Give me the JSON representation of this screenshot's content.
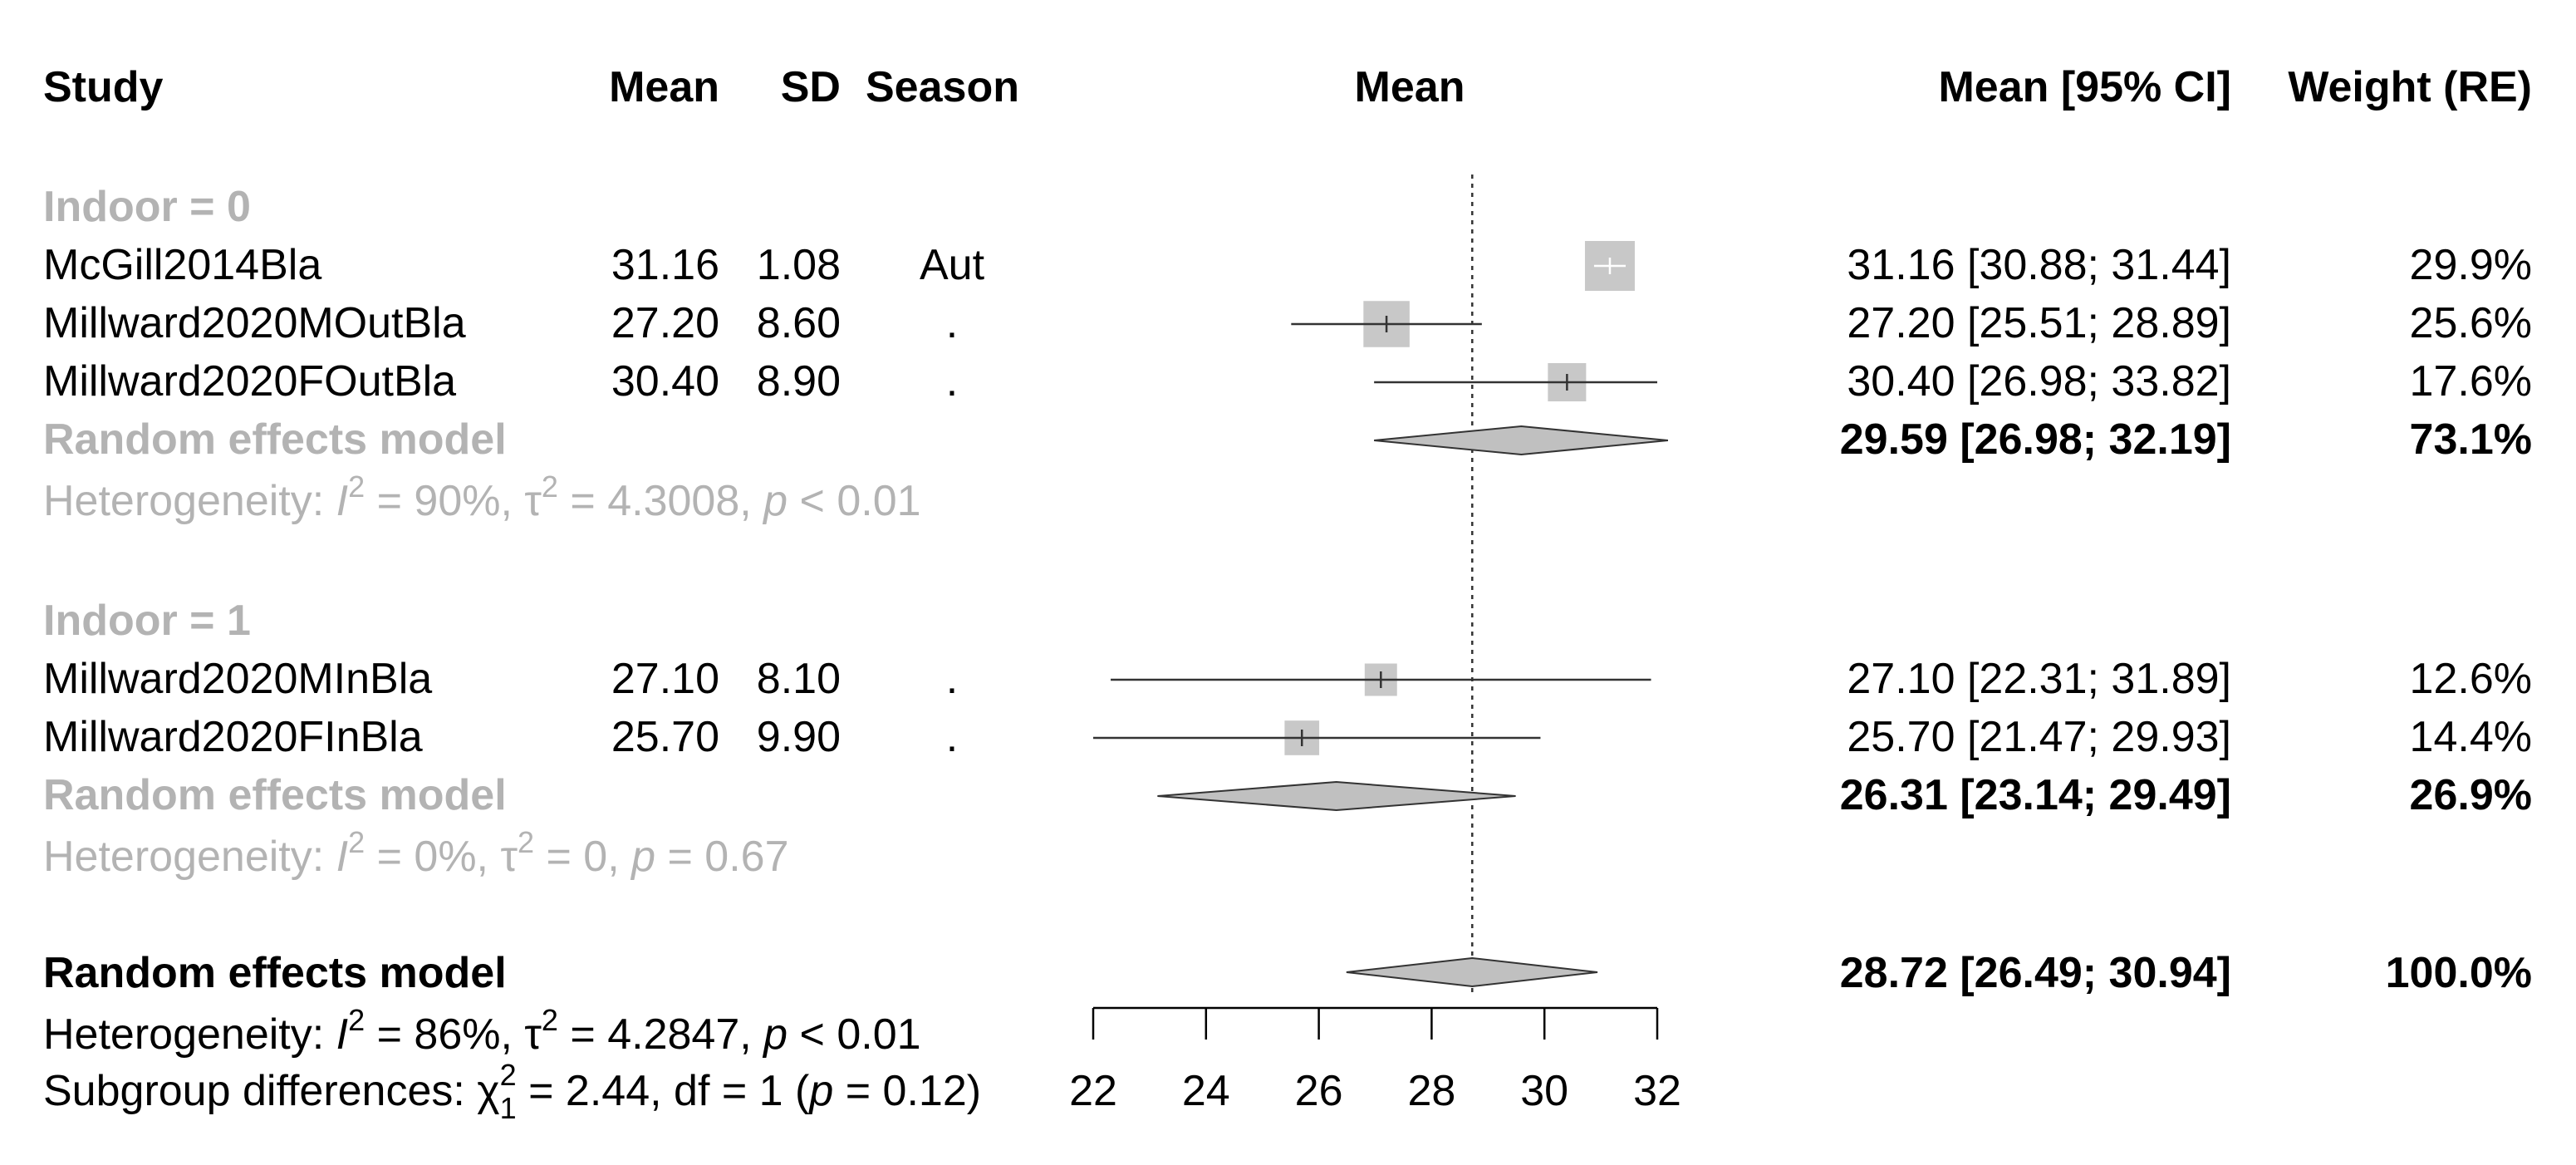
{
  "headers": {
    "study": "Study",
    "mean": "Mean",
    "sd": "SD",
    "season": "Season",
    "plot_mean": "Mean",
    "ci": "Mean [95% CI]",
    "weight": "Weight (RE)"
  },
  "subgroups": [
    {
      "label": "Indoor = 0",
      "studies": [
        {
          "name": "McGill2014Bla",
          "mean": "31.16",
          "sd": "1.08",
          "season": "Aut",
          "ci_text": "31.16 [30.88; 31.44]",
          "weight": "29.9%",
          "est": 31.16,
          "lo": 30.88,
          "hi": 31.44,
          "w": 29.9
        },
        {
          "name": "Millward2020MOutBla",
          "mean": "27.20",
          "sd": "8.60",
          "season": ".",
          "ci_text": "27.20 [25.51; 28.89]",
          "weight": "25.6%",
          "est": 27.2,
          "lo": 25.51,
          "hi": 28.89,
          "w": 25.6
        },
        {
          "name": "Millward2020FOutBla",
          "mean": "30.40",
          "sd": "8.90",
          "season": ".",
          "ci_text": "30.40 [26.98; 33.82]",
          "weight": "17.6%",
          "est": 30.4,
          "lo": 26.98,
          "hi": 33.82,
          "w": 17.6
        }
      ],
      "model": {
        "label": "Random effects model",
        "ci_text": "29.59 [26.98; 32.19]",
        "weight": "73.1%",
        "est": 29.59,
        "lo": 26.98,
        "hi": 32.19
      },
      "heterogeneity": {
        "prefix": "Heterogeneity: ",
        "i_sym": "I",
        "i_val": " = 90%, ",
        "tau_sym": "τ",
        "tau_val": " = 4.3008, ",
        "p_sym": "p",
        "p_val": " < 0.01"
      }
    },
    {
      "label": "Indoor = 1",
      "studies": [
        {
          "name": "Millward2020MInBla",
          "mean": "27.10",
          "sd": "8.10",
          "season": ".",
          "ci_text": "27.10 [22.31; 31.89]",
          "weight": "12.6%",
          "est": 27.1,
          "lo": 22.31,
          "hi": 31.89,
          "w": 12.6
        },
        {
          "name": "Millward2020FInBla",
          "mean": "25.70",
          "sd": "9.90",
          "season": ".",
          "ci_text": "25.70 [21.47; 29.93]",
          "weight": "14.4%",
          "est": 25.7,
          "lo": 21.47,
          "hi": 29.93,
          "w": 14.4
        }
      ],
      "model": {
        "label": "Random effects model",
        "ci_text": "26.31 [23.14; 29.49]",
        "weight": "26.9%",
        "est": 26.31,
        "lo": 23.14,
        "hi": 29.49
      },
      "heterogeneity": {
        "prefix": "Heterogeneity: ",
        "i_sym": "I",
        "i_val": " = 0%, ",
        "tau_sym": "τ",
        "tau_val": " = 0, ",
        "p_sym": "p",
        "p_val": " = 0.67"
      }
    }
  ],
  "overall": {
    "model": {
      "label": "Random effects model",
      "ci_text": "28.72 [26.49; 30.94]",
      "weight": "100.0%",
      "est": 28.72,
      "lo": 26.49,
      "hi": 30.94
    },
    "heterogeneity": {
      "prefix": "Heterogeneity: ",
      "i_sym": "I",
      "i_val": " = 86%, ",
      "tau_sym": "τ",
      "tau_val": " = 4.2847, ",
      "p_sym": "p",
      "p_val": " < 0.01"
    },
    "subgroup_diff": {
      "prefix": "Subgroup differences: ",
      "chi_sym": "χ",
      "chi_sup": "2",
      "chi_sub": "1",
      "stat": " = 2.44, df = 1 (",
      "p_sym": "p",
      "p_val": " = 0.12)"
    }
  },
  "chart_data": {
    "type": "forest",
    "title": "",
    "xlabel": "Mean",
    "xlim": [
      22,
      32
    ],
    "ticks": [
      22,
      24,
      26,
      28,
      30,
      32
    ],
    "tick_labels": [
      "22",
      "24",
      "26",
      "28",
      "30",
      "32"
    ],
    "reference_line": 28.72
  },
  "colors": {
    "text": "#000000",
    "subgroup_text": "#b3b3b3",
    "square": "#c8c8c8",
    "diamond_fill": "#c0c0c0",
    "line": "#333333",
    "square_tick_light": "#ffffff"
  }
}
